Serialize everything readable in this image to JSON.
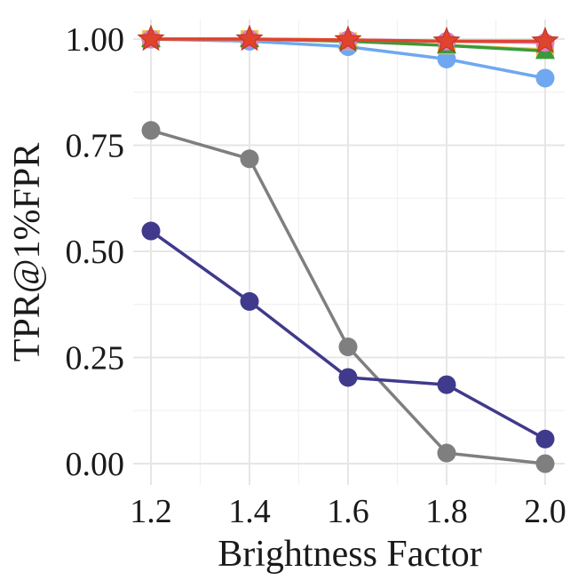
{
  "chart_data": {
    "type": "line",
    "title": "",
    "xlabel": "Brightness Factor",
    "ylabel": "TPR@1%FPR",
    "x": [
      1.2,
      1.4,
      1.6,
      1.8,
      2.0
    ],
    "xlim": [
      1.2,
      2.0
    ],
    "ylim": [
      0.0,
      1.0
    ],
    "x_ticks": [
      "1.2",
      "1.4",
      "1.6",
      "1.8",
      "2.0"
    ],
    "y_ticks": [
      "0.00",
      "0.25",
      "0.50",
      "0.75",
      "1.00"
    ],
    "grid": true,
    "legend": "none",
    "series": [
      {
        "color": "#7f7f7f",
        "marker": "circle",
        "values": [
          0.785,
          0.718,
          0.275,
          0.025,
          0.0
        ]
      },
      {
        "color": "#3f3a8c",
        "marker": "circle",
        "values": [
          0.548,
          0.382,
          0.203,
          0.186,
          0.058
        ]
      },
      {
        "color": "#6fa8f0",
        "marker": "circle",
        "values": [
          1.0,
          0.995,
          0.982,
          0.953,
          0.908
        ]
      },
      {
        "color": "#f2c14e",
        "marker": "square",
        "values": [
          1.0,
          1.0,
          0.995,
          0.985,
          0.975
        ]
      },
      {
        "color": "#3a9a3a",
        "marker": "triangle",
        "values": [
          1.0,
          1.0,
          0.995,
          0.985,
          0.972
        ]
      },
      {
        "color": "#e07bc8",
        "marker": "circle",
        "values": [
          1.0,
          1.0,
          0.998,
          0.995,
          0.992
        ]
      },
      {
        "color": "#e0442c",
        "marker": "star",
        "values": [
          1.0,
          1.0,
          0.998,
          0.995,
          0.995
        ]
      }
    ]
  }
}
